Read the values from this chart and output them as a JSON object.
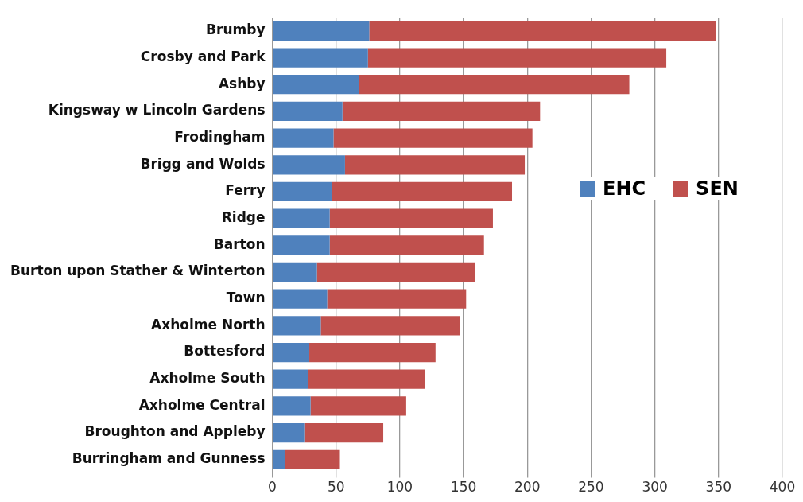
{
  "chart_data": {
    "type": "bar",
    "orientation": "horizontal",
    "stacked": true,
    "categories": [
      "Brumby",
      "Crosby and Park",
      "Ashby",
      "Kingsway w Lincoln Gardens",
      "Frodingham",
      "Brigg and Wolds",
      "Ferry",
      "Ridge",
      "Barton",
      "Burton upon Stather & Winterton",
      "Town",
      "Axholme North",
      "Bottesford",
      "Axholme South",
      "Axholme Central",
      "Broughton and Appleby",
      "Burringham and Gunness"
    ],
    "series": [
      {
        "name": "EHC",
        "color": "#4f81bd",
        "values": [
          76,
          75,
          68,
          55,
          48,
          57,
          47,
          45,
          45,
          35,
          43,
          38,
          29,
          28,
          30,
          25,
          10
        ]
      },
      {
        "name": "SEN",
        "color": "#c0504d",
        "values": [
          272,
          234,
          212,
          155,
          156,
          141,
          141,
          128,
          121,
          124,
          109,
          109,
          99,
          92,
          75,
          62,
          43
        ]
      }
    ],
    "xlim": [
      0,
      400
    ],
    "xticks": [
      0,
      50,
      100,
      150,
      200,
      250,
      300,
      350,
      400
    ],
    "grid": "x",
    "legend": "right"
  }
}
